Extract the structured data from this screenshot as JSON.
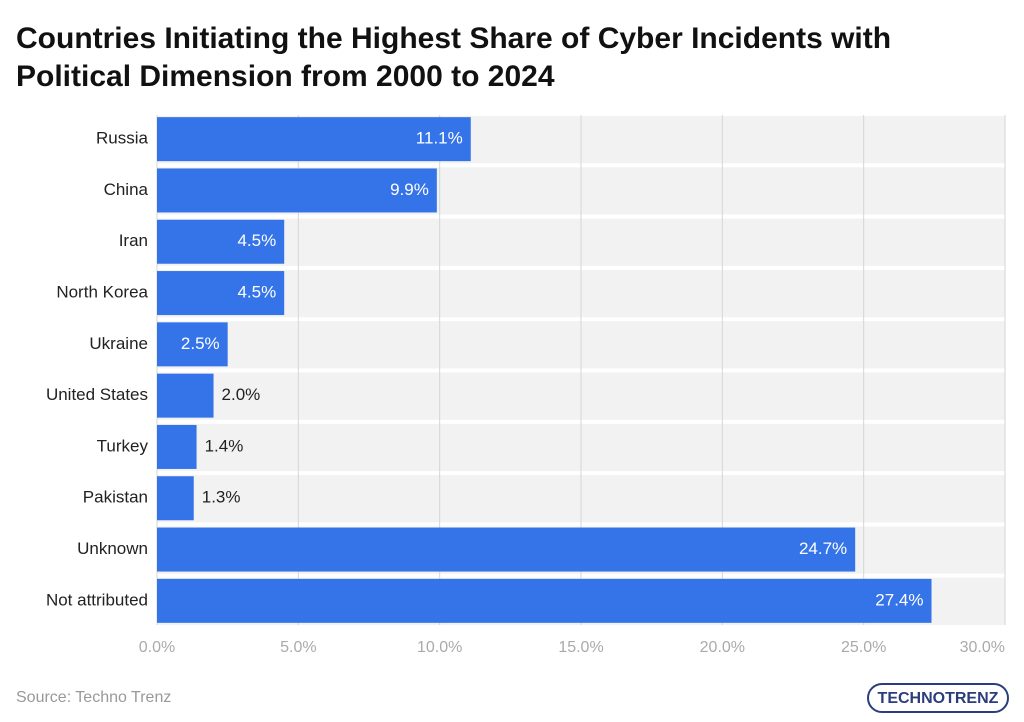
{
  "chart_data": {
    "type": "barh",
    "title": "Countries Initiating the Highest Share of Cyber Incidents with Political Dimension from 2000 to 2024",
    "categories": [
      "Russia",
      "China",
      "Iran",
      "North Korea",
      "Ukraine",
      "United States",
      "Turkey",
      "Pakistan",
      "Unknown",
      "Not attributed"
    ],
    "values": [
      11.1,
      9.9,
      4.5,
      4.5,
      2.5,
      2.0,
      1.4,
      1.3,
      24.7,
      27.4
    ],
    "value_labels": [
      "11.1%",
      "9.9%",
      "4.5%",
      "4.5%",
      "2.5%",
      "2.0%",
      "1.4%",
      "1.3%",
      "24.7%",
      "27.4%"
    ],
    "color": "#3574e8",
    "xlim": [
      0,
      30
    ],
    "xticks": [
      {
        "value": 0,
        "label": "0.0%"
      },
      {
        "value": 5,
        "label": "5.0%"
      },
      {
        "value": 10,
        "label": "10.0%"
      },
      {
        "value": 15,
        "label": "15.0%"
      },
      {
        "value": 20,
        "label": "20.0%"
      },
      {
        "value": 25,
        "label": "25.0%"
      },
      {
        "value": 30,
        "label": "30.0%"
      }
    ],
    "grid": true,
    "source": "Source: Techno Trenz",
    "logo": "TECHNOTRENZ"
  }
}
